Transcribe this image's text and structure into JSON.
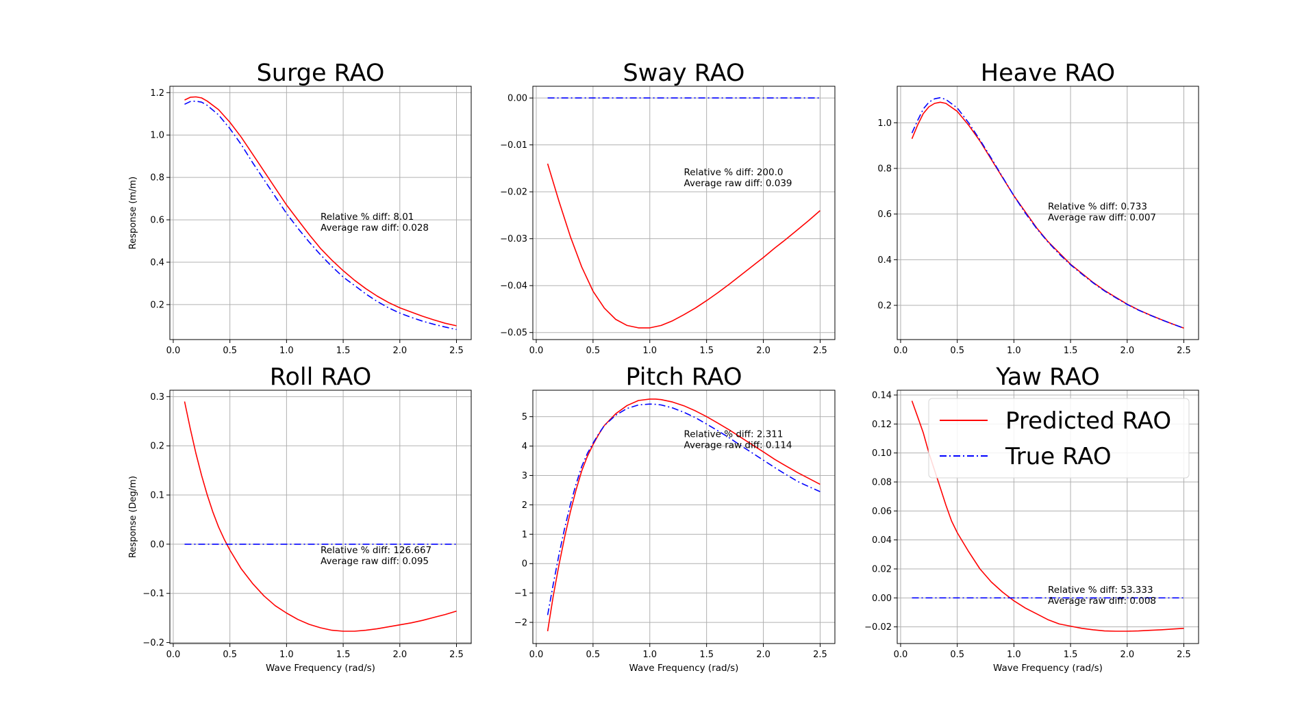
{
  "x_label": "Wave Frequency (rad/s)",
  "legend": {
    "location": "upper right",
    "predicted": "Predicted RAO",
    "true": "True RAO"
  },
  "colors": {
    "predicted": "#ff0000",
    "true": "#0000ff",
    "grid": "#b0b0b0"
  },
  "chart_data": [
    {
      "type": "line",
      "title": "Surge RAO",
      "xlabel": "",
      "ylabel": "Response (m/m)",
      "xlim": [
        -0.03,
        2.63
      ],
      "ylim": [
        0.035,
        1.23
      ],
      "grid": true,
      "xticks": [
        0.0,
        0.5,
        1.0,
        1.5,
        2.0,
        2.5
      ],
      "xtick_labels": [
        "0.0",
        "0.5",
        "1.0",
        "1.5",
        "2.0",
        "2.5"
      ],
      "yticks": [
        0.2,
        0.4,
        0.6,
        0.8,
        1.0,
        1.2
      ],
      "ytick_labels": [
        "0.2",
        "0.4",
        "0.6",
        "0.8",
        "1.0",
        "1.2"
      ],
      "annotation": {
        "x": 1.3,
        "y": 0.6,
        "lines": [
          "Relative % diff: 8.01",
          "Average raw diff: 0.028"
        ]
      },
      "series": [
        {
          "name": "Predicted RAO",
          "style": "solid",
          "x": [
            0.1,
            0.15,
            0.2,
            0.25,
            0.3,
            0.4,
            0.5,
            0.6,
            0.7,
            0.8,
            0.9,
            1.0,
            1.1,
            1.2,
            1.3,
            1.4,
            1.5,
            1.6,
            1.7,
            1.8,
            1.9,
            2.0,
            2.1,
            2.2,
            2.3,
            2.4,
            2.5
          ],
          "y": [
            1.165,
            1.178,
            1.18,
            1.175,
            1.16,
            1.12,
            1.06,
            0.99,
            0.91,
            0.83,
            0.75,
            0.67,
            0.6,
            0.53,
            0.465,
            0.41,
            0.36,
            0.315,
            0.275,
            0.24,
            0.21,
            0.185,
            0.165,
            0.145,
            0.128,
            0.112,
            0.1
          ]
        },
        {
          "name": "True RAO",
          "style": "dashdot",
          "x": [
            0.1,
            0.15,
            0.2,
            0.25,
            0.3,
            0.4,
            0.5,
            0.6,
            0.7,
            0.8,
            0.9,
            1.0,
            1.1,
            1.2,
            1.3,
            1.4,
            1.5,
            1.6,
            1.7,
            1.8,
            1.9,
            2.0,
            2.1,
            2.2,
            2.3,
            2.4,
            2.5
          ],
          "y": [
            1.145,
            1.158,
            1.16,
            1.155,
            1.14,
            1.095,
            1.03,
            0.955,
            0.87,
            0.79,
            0.71,
            0.63,
            0.56,
            0.495,
            0.435,
            0.38,
            0.33,
            0.29,
            0.25,
            0.215,
            0.185,
            0.16,
            0.14,
            0.122,
            0.107,
            0.094,
            0.082
          ]
        }
      ]
    },
    {
      "type": "line",
      "title": "Sway RAO",
      "xlabel": "",
      "ylabel": "",
      "xlim": [
        -0.03,
        2.63
      ],
      "ylim": [
        -0.0515,
        0.0025
      ],
      "grid": true,
      "xticks": [
        0.0,
        0.5,
        1.0,
        1.5,
        2.0,
        2.5
      ],
      "xtick_labels": [
        "0.0",
        "0.5",
        "1.0",
        "1.5",
        "2.0",
        "2.5"
      ],
      "yticks": [
        -0.05,
        -0.04,
        -0.03,
        -0.02,
        -0.01,
        0.0
      ],
      "ytick_labels": [
        "−0.05",
        "−0.04",
        "−0.03",
        "−0.02",
        "−0.01",
        "0.00"
      ],
      "annotation": {
        "x": 1.3,
        "y": -0.0165,
        "lines": [
          "Relative % diff: 200.0",
          "Average raw diff: 0.039"
        ]
      },
      "series": [
        {
          "name": "Predicted RAO",
          "style": "solid",
          "x": [
            0.1,
            0.2,
            0.3,
            0.4,
            0.5,
            0.6,
            0.7,
            0.8,
            0.9,
            1.0,
            1.1,
            1.2,
            1.3,
            1.4,
            1.5,
            1.6,
            1.7,
            1.8,
            1.9,
            2.0,
            2.1,
            2.2,
            2.3,
            2.4,
            2.5
          ],
          "y": [
            -0.014,
            -0.022,
            -0.0295,
            -0.036,
            -0.0412,
            -0.0448,
            -0.0472,
            -0.0485,
            -0.049,
            -0.049,
            -0.0485,
            -0.0475,
            -0.0462,
            -0.0448,
            -0.0432,
            -0.0415,
            -0.0397,
            -0.0378,
            -0.0359,
            -0.034,
            -0.032,
            -0.0301,
            -0.0281,
            -0.0261,
            -0.024
          ]
        },
        {
          "name": "True RAO",
          "style": "dashdot",
          "x": [
            0.1,
            2.5
          ],
          "y": [
            0.0,
            0.0
          ]
        }
      ]
    },
    {
      "type": "line",
      "title": "Heave RAO",
      "xlabel": "",
      "ylabel": "",
      "xlim": [
        -0.03,
        2.63
      ],
      "ylim": [
        0.05,
        1.16
      ],
      "grid": true,
      "xticks": [
        0.0,
        0.5,
        1.0,
        1.5,
        2.0,
        2.5
      ],
      "xtick_labels": [
        "0.0",
        "0.5",
        "1.0",
        "1.5",
        "2.0",
        "2.5"
      ],
      "yticks": [
        0.2,
        0.4,
        0.6,
        0.8,
        1.0
      ],
      "ytick_labels": [
        "0.2",
        "0.4",
        "0.6",
        "0.8",
        "1.0"
      ],
      "annotation": {
        "x": 1.3,
        "y": 0.62,
        "lines": [
          "Relative % diff: 0.733",
          "Average raw diff: 0.007"
        ]
      },
      "series": [
        {
          "name": "Predicted RAO",
          "style": "solid",
          "x": [
            0.1,
            0.15,
            0.2,
            0.25,
            0.3,
            0.35,
            0.4,
            0.5,
            0.6,
            0.7,
            0.8,
            0.9,
            1.0,
            1.1,
            1.2,
            1.3,
            1.4,
            1.5,
            1.6,
            1.7,
            1.8,
            1.9,
            2.0,
            2.1,
            2.2,
            2.3,
            2.4,
            2.5
          ],
          "y": [
            0.93,
            0.99,
            1.04,
            1.07,
            1.085,
            1.09,
            1.085,
            1.05,
            0.99,
            0.92,
            0.84,
            0.76,
            0.68,
            0.61,
            0.54,
            0.48,
            0.43,
            0.38,
            0.34,
            0.3,
            0.265,
            0.235,
            0.205,
            0.18,
            0.158,
            0.138,
            0.118,
            0.1
          ]
        },
        {
          "name": "True RAO",
          "style": "dashdot",
          "x": [
            0.1,
            0.15,
            0.2,
            0.25,
            0.3,
            0.35,
            0.4,
            0.5,
            0.6,
            0.7,
            0.8,
            0.9,
            1.0,
            1.1,
            1.2,
            1.3,
            1.4,
            1.5,
            1.6,
            1.7,
            1.8,
            1.9,
            2.0,
            2.1,
            2.2,
            2.3,
            2.4,
            2.5
          ],
          "y": [
            0.955,
            1.01,
            1.06,
            1.09,
            1.105,
            1.11,
            1.102,
            1.065,
            1.0,
            0.925,
            0.845,
            0.762,
            0.68,
            0.605,
            0.537,
            0.478,
            0.425,
            0.378,
            0.337,
            0.298,
            0.263,
            0.233,
            0.204,
            0.179,
            0.157,
            0.137,
            0.118,
            0.1
          ]
        }
      ]
    },
    {
      "type": "line",
      "title": "Roll RAO",
      "xlabel": "Wave Frequency (rad/s)",
      "ylabel": "Response (Deg/m)",
      "xlim": [
        -0.03,
        2.63
      ],
      "ylim": [
        -0.202,
        0.313
      ],
      "grid": true,
      "xticks": [
        0.0,
        0.5,
        1.0,
        1.5,
        2.0,
        2.5
      ],
      "xtick_labels": [
        "0.0",
        "0.5",
        "1.0",
        "1.5",
        "2.0",
        "2.5"
      ],
      "yticks": [
        -0.2,
        -0.1,
        0.0,
        0.1,
        0.2,
        0.3
      ],
      "ytick_labels": [
        "−0.2",
        "−0.1",
        "0.0",
        "0.1",
        "0.2",
        "0.3"
      ],
      "annotation": {
        "x": 1.3,
        "y": -0.018,
        "lines": [
          "Relative % diff: 126.667",
          "Average raw diff: 0.095"
        ]
      },
      "series": [
        {
          "name": "Predicted RAO",
          "style": "solid",
          "x": [
            0.1,
            0.15,
            0.2,
            0.25,
            0.3,
            0.35,
            0.4,
            0.45,
            0.5,
            0.6,
            0.7,
            0.8,
            0.9,
            1.0,
            1.1,
            1.2,
            1.3,
            1.4,
            1.5,
            1.6,
            1.7,
            1.8,
            1.9,
            2.0,
            2.1,
            2.2,
            2.3,
            2.4,
            2.5
          ],
          "y": [
            0.29,
            0.235,
            0.185,
            0.14,
            0.1,
            0.065,
            0.035,
            0.01,
            -0.012,
            -0.05,
            -0.08,
            -0.105,
            -0.125,
            -0.14,
            -0.153,
            -0.163,
            -0.17,
            -0.175,
            -0.177,
            -0.177,
            -0.175,
            -0.172,
            -0.168,
            -0.164,
            -0.16,
            -0.155,
            -0.149,
            -0.143,
            -0.136
          ]
        },
        {
          "name": "True RAO",
          "style": "dashdot",
          "x": [
            0.1,
            2.5
          ],
          "y": [
            0.0,
            0.0
          ]
        }
      ]
    },
    {
      "type": "line",
      "title": "Pitch RAO",
      "xlabel": "Wave Frequency (rad/s)",
      "ylabel": "",
      "xlim": [
        -0.03,
        2.63
      ],
      "ylim": [
        -2.72,
        5.9
      ],
      "grid": true,
      "xticks": [
        0.0,
        0.5,
        1.0,
        1.5,
        2.0,
        2.5
      ],
      "xtick_labels": [
        "0.0",
        "0.5",
        "1.0",
        "1.5",
        "2.0",
        "2.5"
      ],
      "yticks": [
        -2,
        -1,
        0,
        1,
        2,
        3,
        4,
        5
      ],
      "ytick_labels": [
        "−2",
        "−1",
        "0",
        "1",
        "2",
        "3",
        "4",
        "5"
      ],
      "annotation": {
        "x": 1.3,
        "y": 4.3,
        "lines": [
          "Relative % diff: 2.311",
          "Average raw diff: 0.114"
        ]
      },
      "series": [
        {
          "name": "Predicted RAO",
          "style": "solid",
          "x": [
            0.1,
            0.15,
            0.2,
            0.25,
            0.3,
            0.35,
            0.4,
            0.45,
            0.5,
            0.55,
            0.6,
            0.7,
            0.8,
            0.9,
            1.0,
            1.05,
            1.1,
            1.2,
            1.3,
            1.4,
            1.5,
            1.6,
            1.7,
            1.8,
            1.9,
            2.0,
            2.1,
            2.2,
            2.3,
            2.4,
            2.5
          ],
          "y": [
            -2.3,
            -1.1,
            -0.05,
            0.9,
            1.75,
            2.5,
            3.15,
            3.65,
            4.05,
            4.4,
            4.7,
            5.1,
            5.38,
            5.55,
            5.6,
            5.6,
            5.58,
            5.5,
            5.37,
            5.2,
            5.0,
            4.78,
            4.55,
            4.3,
            4.05,
            3.8,
            3.55,
            3.32,
            3.1,
            2.9,
            2.7
          ]
        },
        {
          "name": "True RAO",
          "style": "dashdot",
          "x": [
            0.1,
            0.15,
            0.2,
            0.25,
            0.3,
            0.35,
            0.4,
            0.45,
            0.5,
            0.55,
            0.6,
            0.7,
            0.8,
            0.9,
            1.0,
            1.05,
            1.1,
            1.2,
            1.3,
            1.4,
            1.5,
            1.6,
            1.7,
            1.8,
            1.9,
            2.0,
            2.1,
            2.2,
            2.3,
            2.4,
            2.5
          ],
          "y": [
            -1.75,
            -0.7,
            0.3,
            1.2,
            2.0,
            2.7,
            3.3,
            3.75,
            4.1,
            4.42,
            4.7,
            5.05,
            5.28,
            5.4,
            5.43,
            5.42,
            5.4,
            5.3,
            5.15,
            4.97,
            4.75,
            4.52,
            4.28,
            4.02,
            3.77,
            3.52,
            3.27,
            3.03,
            2.8,
            2.62,
            2.45
          ]
        }
      ]
    },
    {
      "type": "line",
      "title": "Yaw RAO",
      "xlabel": "Wave Frequency (rad/s)",
      "ylabel": "",
      "xlim": [
        -0.03,
        2.63
      ],
      "ylim": [
        -0.0315,
        0.1433
      ],
      "grid": true,
      "xticks": [
        0.0,
        0.5,
        1.0,
        1.5,
        2.0,
        2.5
      ],
      "xtick_labels": [
        "0.0",
        "0.5",
        "1.0",
        "1.5",
        "2.0",
        "2.5"
      ],
      "yticks": [
        -0.02,
        0.0,
        0.02,
        0.04,
        0.06,
        0.08,
        0.1,
        0.12,
        0.14
      ],
      "ytick_labels": [
        "−0.02",
        "0.00",
        "0.02",
        "0.04",
        "0.06",
        "0.08",
        "0.10",
        "0.12",
        "0.14"
      ],
      "annotation": {
        "x": 1.3,
        "y": 0.0035,
        "lines": [
          "Relative % diff: 53.333",
          "Average raw diff: 0.008"
        ]
      },
      "legend": true,
      "series": [
        {
          "name": "Predicted RAO",
          "style": "solid",
          "x": [
            0.1,
            0.15,
            0.2,
            0.25,
            0.3,
            0.35,
            0.4,
            0.45,
            0.5,
            0.6,
            0.7,
            0.8,
            0.9,
            1.0,
            1.1,
            1.2,
            1.3,
            1.4,
            1.5,
            1.6,
            1.7,
            1.8,
            1.9,
            2.0,
            2.1,
            2.2,
            2.3,
            2.4,
            2.5
          ],
          "y": [
            0.136,
            0.125,
            0.114,
            0.1,
            0.088,
            0.076,
            0.064,
            0.053,
            0.045,
            0.032,
            0.02,
            0.011,
            0.004,
            -0.002,
            -0.007,
            -0.011,
            -0.015,
            -0.018,
            -0.0195,
            -0.021,
            -0.022,
            -0.0228,
            -0.023,
            -0.023,
            -0.0228,
            -0.0224,
            -0.022,
            -0.0215,
            -0.021
          ]
        },
        {
          "name": "True RAO",
          "style": "dashdot",
          "x": [
            0.1,
            2.5
          ],
          "y": [
            0.0,
            0.0
          ]
        }
      ]
    }
  ]
}
